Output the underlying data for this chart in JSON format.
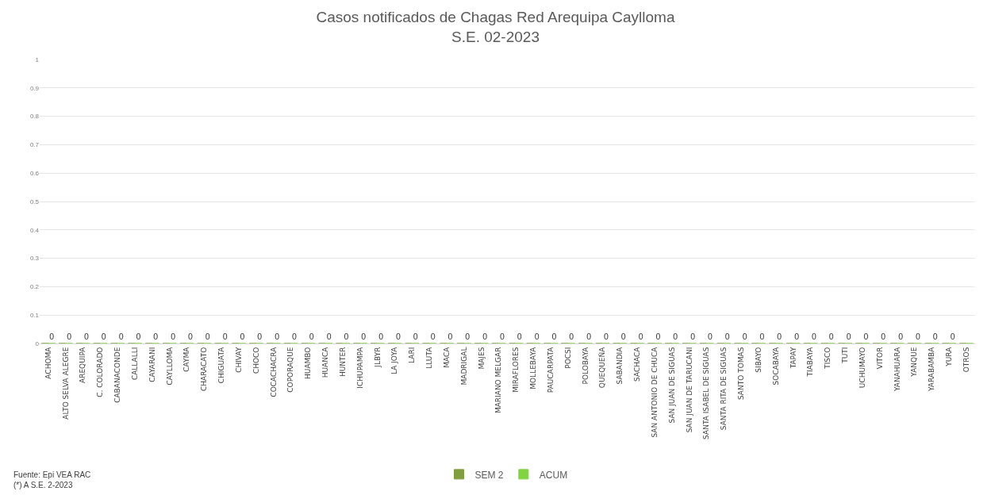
{
  "chart_data": {
    "type": "bar",
    "title": "Casos notificados de Chagas Red Arequipa Caylloma\nS.E. 02-2023",
    "categories": [
      "ACHOMA",
      "ALTO SELVA ALEGRE",
      "AREQUIPA",
      "C. COLORADO",
      "CABANACONDE",
      "CALLALLI",
      "CAYARANI",
      "CAYLLOMA",
      "CAYMA",
      "CHARACATO",
      "CHIGUATA",
      "CHIVAY",
      "CHOCO",
      "COCACHACRA",
      "COPORAQUE",
      "HUAMBO",
      "HUANCA",
      "HUNTER",
      "ICHUPAMPA",
      "JLBYR",
      "LA JOYA",
      "LARI",
      "LLUTA",
      "MACA",
      "MADRIGAL",
      "MAJES",
      "MARIANO MELGAR",
      "MIRAFLORES",
      "MOLLEBAYA",
      "PAUCARPATA",
      "POCSI",
      "POLOBAYA",
      "QUEQUEÑA",
      "SABANDIA",
      "SACHACA",
      "SAN ANTONIO DE CHUCA",
      "SAN JUAN DE SIGUAS",
      "SAN JUAN DE TARUCANI",
      "SANTA ISABEL DE SIGUAS",
      "SANTA RITA DE SIGUAS",
      "SANTO TOMAS",
      "SIBAYO",
      "SOCABAYA",
      "TAPAY",
      "TIABAYA",
      "TISCO",
      "TUTI",
      "UCHUMAYO",
      "VITOR",
      "YANAHUARA",
      "YANQUE",
      "YARABAMBA",
      "YURA",
      "OTROS"
    ],
    "series": [
      {
        "name": "SEM 2",
        "color": "#7f9f3f",
        "values": [
          0,
          0,
          0,
          0,
          0,
          0,
          0,
          0,
          0,
          0,
          0,
          0,
          0,
          0,
          0,
          0,
          0,
          0,
          0,
          0,
          0,
          0,
          0,
          0,
          0,
          0,
          0,
          0,
          0,
          0,
          0,
          0,
          0,
          0,
          0,
          0,
          0,
          0,
          0,
          0,
          0,
          0,
          0,
          0,
          0,
          0,
          0,
          0,
          0,
          0,
          0,
          0,
          0,
          0
        ]
      },
      {
        "name": "ACUM",
        "color": "#7fd43f",
        "values": [
          0,
          0,
          0,
          0,
          0,
          0,
          0,
          0,
          0,
          0,
          0,
          0,
          0,
          0,
          0,
          0,
          0,
          0,
          0,
          0,
          0,
          0,
          0,
          0,
          0,
          0,
          0,
          0,
          0,
          0,
          0,
          0,
          0,
          0,
          0,
          0,
          0,
          0,
          0,
          0,
          0,
          0,
          0,
          0,
          0,
          0,
          0,
          0,
          0,
          0,
          0,
          0,
          0,
          0
        ],
        "value_labels": [
          "0",
          "0",
          "0",
          "0",
          "0",
          "0",
          "0",
          "0",
          "0",
          "0",
          "0",
          "0",
          "0",
          "0",
          "0",
          "0",
          "0",
          "0",
          "0",
          "0",
          "0",
          "0",
          "0",
          "0",
          "0",
          "0",
          "0",
          "0",
          "0",
          "0",
          "0",
          "0",
          "0",
          "0",
          "0",
          "0",
          "0",
          "0",
          "0",
          "0",
          "0",
          "0",
          "0",
          "0",
          "0",
          "0",
          "0",
          "0",
          "0",
          "0",
          "0",
          "0",
          "0",
          null
        ]
      }
    ],
    "ylim": [
      0,
      1
    ],
    "yticks": [
      0,
      0.1,
      0.2,
      0.3,
      0.4,
      0.5,
      0.6,
      0.7,
      0.8,
      0.9,
      1
    ],
    "grid": "y",
    "legend": "bottom",
    "annotations": [
      "Fuente: Epi VEA RAC\n(*) A S.E. 2-2023"
    ]
  }
}
